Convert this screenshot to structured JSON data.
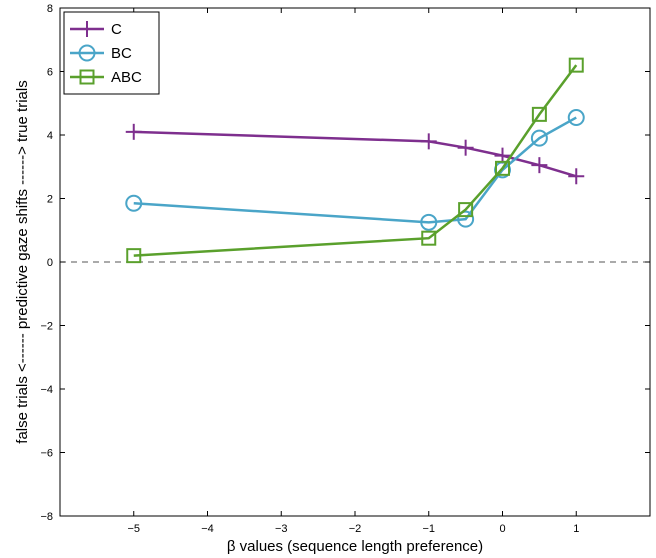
{
  "chart_data": {
    "type": "line",
    "xlabel": "β values (sequence length preference)",
    "ylabel": "false trials <------ predictive gaze shifts ------> true trials",
    "xlim": [
      -6,
      2
    ],
    "ylim": [
      -8,
      8
    ],
    "x_ticks": [
      -5,
      -4,
      -3,
      -2,
      -1,
      0,
      1
    ],
    "y_ticks": [
      -8,
      -6,
      -4,
      -2,
      0,
      2,
      4,
      6,
      8
    ],
    "x_tick_labels": [
      "−5",
      "−4",
      "−3",
      "−2",
      "−1",
      "0",
      "1"
    ],
    "y_tick_labels": [
      "−8",
      "−6",
      "−4",
      "−2",
      "0",
      "2",
      "4",
      "6",
      "8"
    ],
    "grid": false,
    "reference_line": {
      "y": 0,
      "style": "dashed",
      "color": "#555555"
    },
    "legend_position": "top-left",
    "series": [
      {
        "name": "C",
        "color": "#7e2f8e",
        "marker": "plus",
        "x": [
          -5,
          -1,
          -0.5,
          0,
          0.5,
          1
        ],
        "y": [
          4.1,
          3.8,
          3.6,
          3.35,
          3.05,
          2.7
        ]
      },
      {
        "name": "BC",
        "color": "#4aa5c8",
        "marker": "circle",
        "x": [
          -5,
          -1,
          -0.5,
          0,
          0.5,
          1
        ],
        "y": [
          1.85,
          1.25,
          1.35,
          2.9,
          3.9,
          4.55
        ]
      },
      {
        "name": "ABC",
        "color": "#5aa02c",
        "marker": "square",
        "x": [
          -5,
          -1,
          -0.5,
          0,
          0.5,
          1
        ],
        "y": [
          0.2,
          0.75,
          1.65,
          2.95,
          4.65,
          6.2
        ]
      }
    ]
  }
}
